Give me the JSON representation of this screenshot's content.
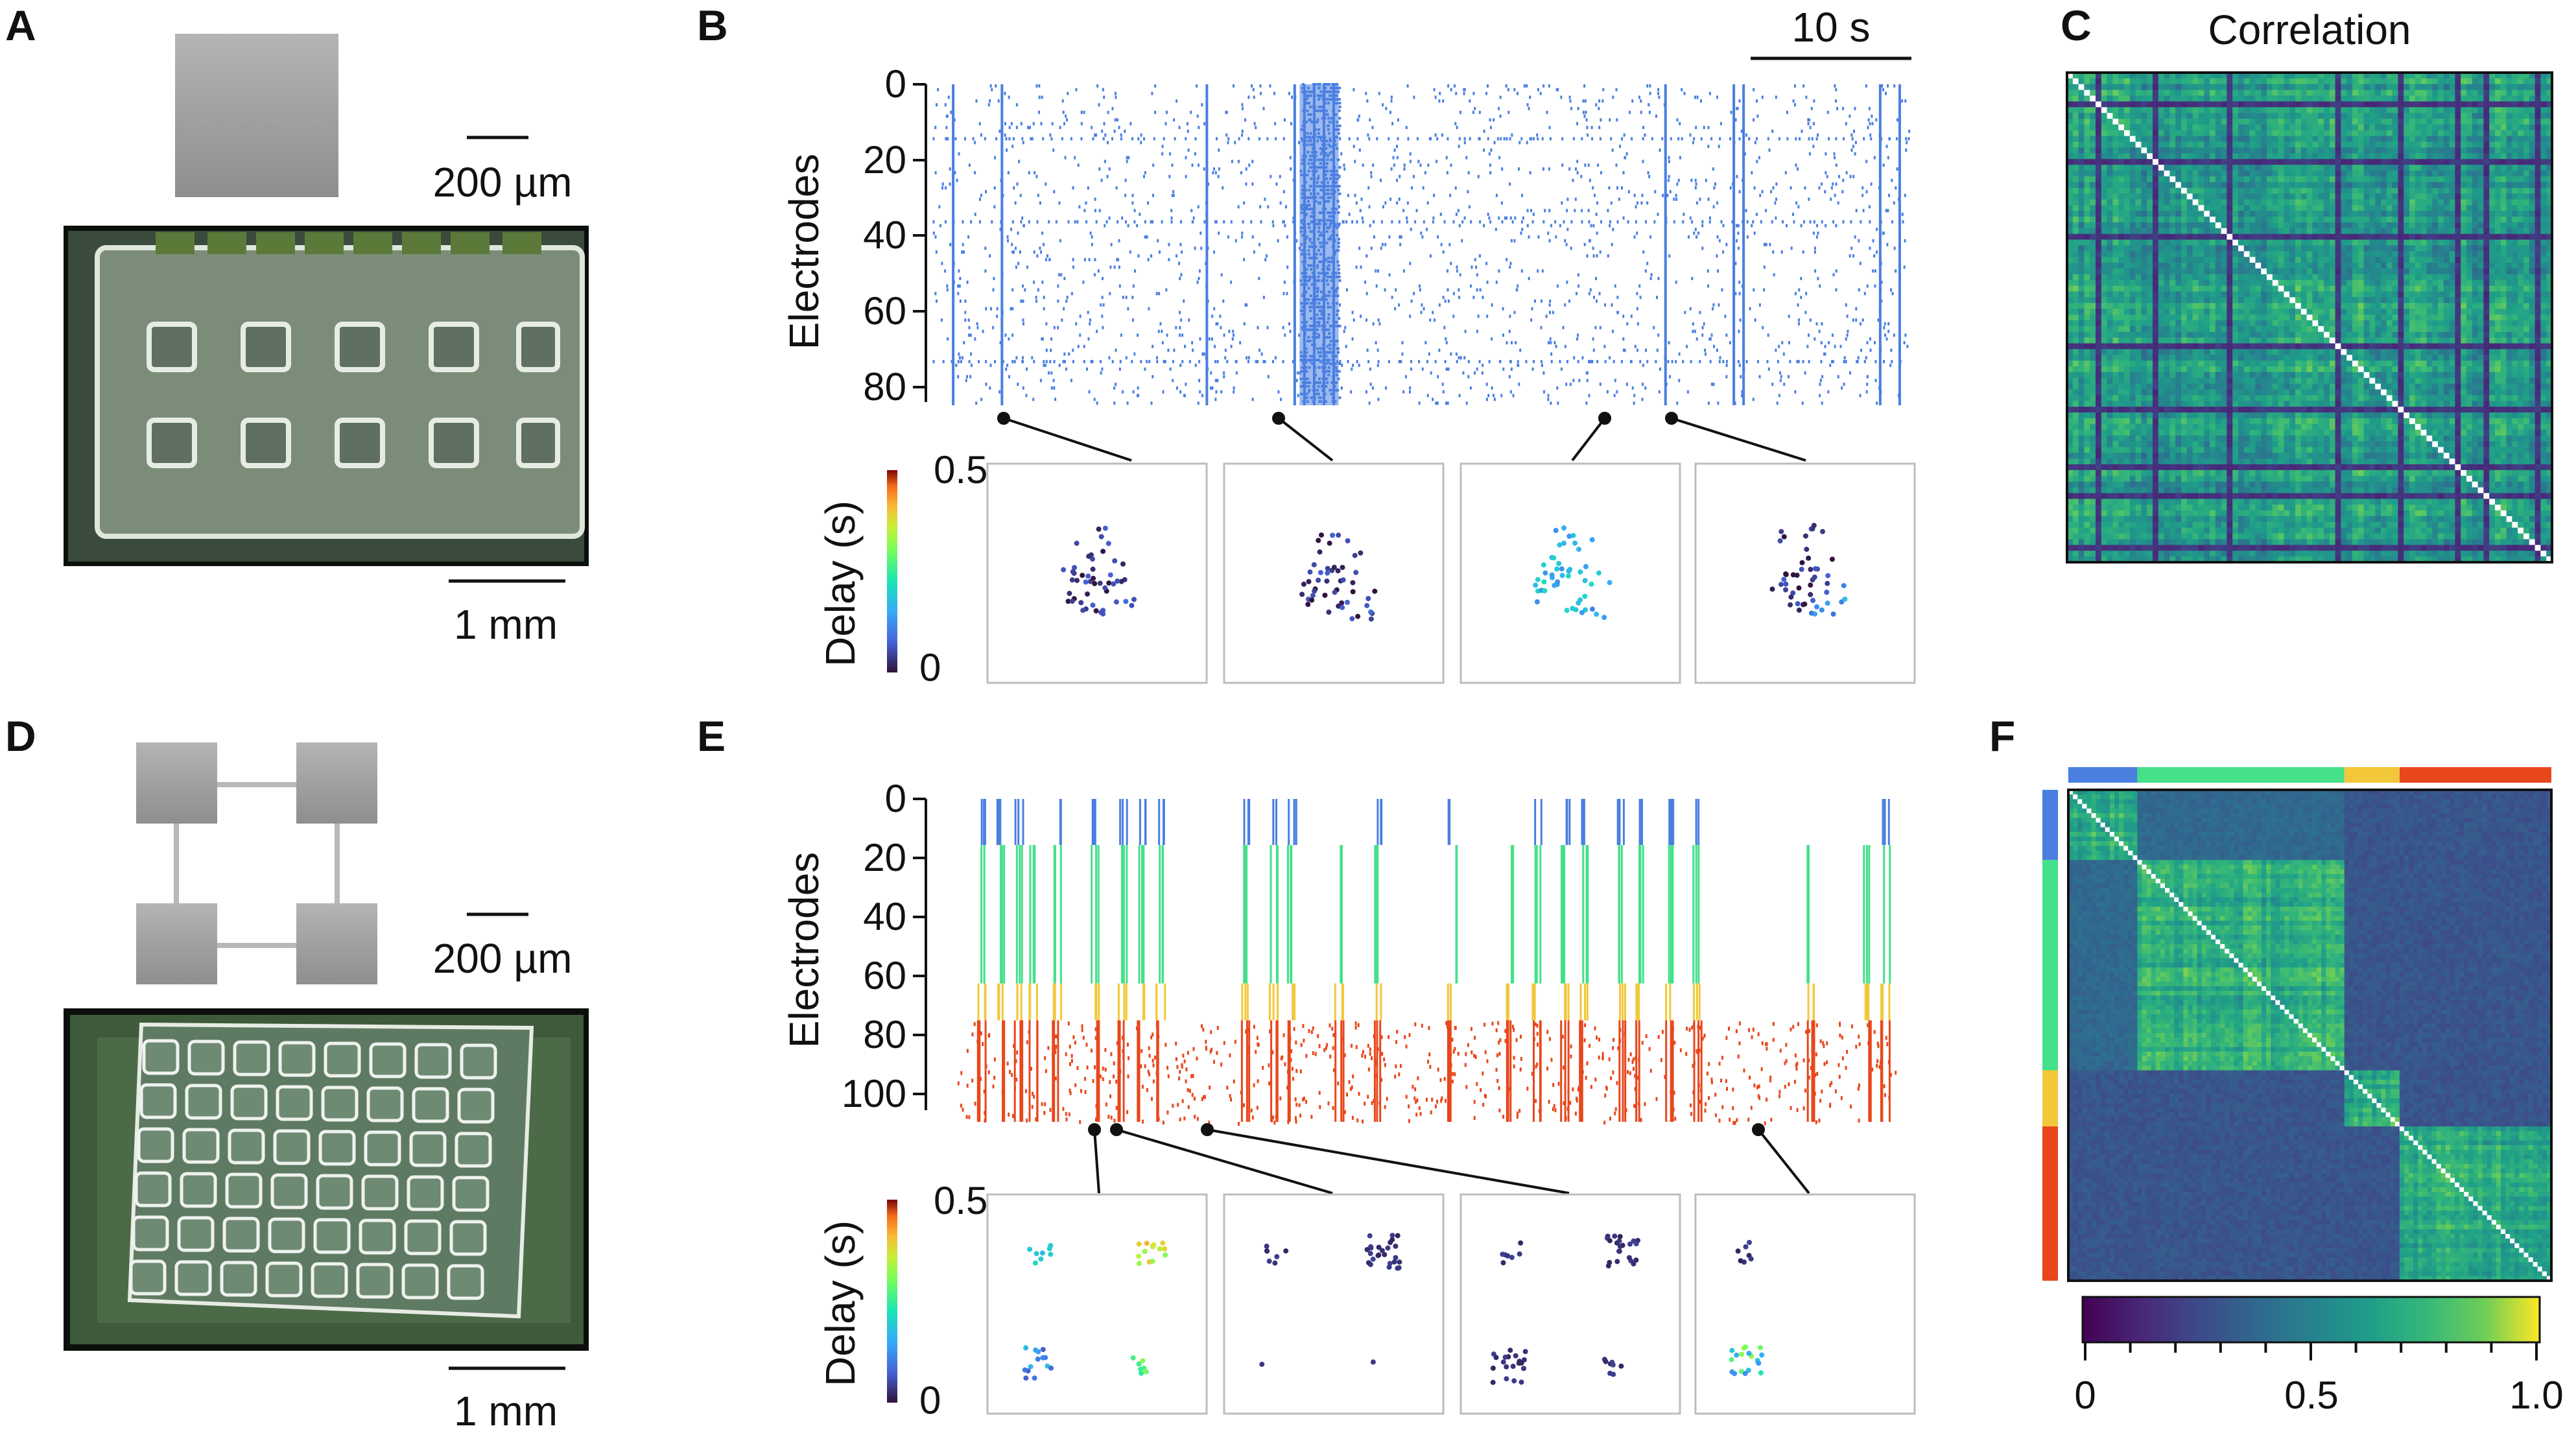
{
  "panels": {
    "A": {
      "label": "A",
      "scale_small": "200 µm",
      "scale_big": "1 mm"
    },
    "B": {
      "label": "B",
      "time_scale": "10 s",
      "ylabel": "Electrodes",
      "yticks": [
        "0",
        "20",
        "40",
        "60",
        "80"
      ],
      "delay_label": "Delay (s)",
      "delay_max": "0.5",
      "delay_min": "0"
    },
    "C": {
      "label": "C",
      "title": "Correlation"
    },
    "D": {
      "label": "D",
      "scale_small": "200 µm",
      "scale_big": "1 mm"
    },
    "E": {
      "label": "E",
      "ylabel": "Electrodes",
      "yticks": [
        "0",
        "20",
        "40",
        "60",
        "80",
        "100"
      ],
      "delay_label": "Delay (s)",
      "delay_max": "0.5",
      "delay_min": "0"
    },
    "F": {
      "label": "F",
      "colorbar_ticks": [
        "0",
        "0.5",
        "1.0"
      ]
    }
  },
  "colors": {
    "blue": "#4a7fe0",
    "green": "#44e08a",
    "yellow": "#f2c83a",
    "red": "#e8471c",
    "raster_b": "#4a7fe0"
  },
  "chart_data": [
    {
      "type": "scatter",
      "title": "",
      "xlabel": "",
      "ylabel": "Electrodes",
      "ylim": [
        0,
        85
      ],
      "description_series": "raster of spikes, panel B",
      "bursts_x_frac": [
        0.02,
        0.07,
        0.28,
        0.37,
        0.38,
        0.39,
        0.4,
        0.41,
        0.75,
        0.82,
        0.83,
        0.97,
        0.99
      ],
      "tonic_electrodes": [
        14,
        36,
        73
      ]
    },
    {
      "type": "scatter",
      "title": "",
      "xlabel": "",
      "ylabel": "Electrodes",
      "ylim": [
        0,
        105
      ],
      "description_series": "raster of spikes, panel E",
      "modules": [
        {
          "name": "blue",
          "from": 0,
          "to": 15
        },
        {
          "name": "green",
          "from": 15,
          "to": 60
        },
        {
          "name": "yellow",
          "from": 60,
          "to": 72
        },
        {
          "name": "red",
          "from": 72,
          "to": 105
        }
      ]
    },
    {
      "type": "heatmap",
      "title": "Correlation",
      "size": 85,
      "vmin": 0,
      "vmax": 1
    },
    {
      "type": "heatmap",
      "title": "",
      "size": 105,
      "vmin": 0,
      "vmax": 1,
      "colorbar": [
        0,
        0.5,
        1.0
      ],
      "blocks": [
        [
          0,
          15
        ],
        [
          15,
          60
        ],
        [
          60,
          72
        ],
        [
          72,
          105
        ]
      ]
    }
  ]
}
